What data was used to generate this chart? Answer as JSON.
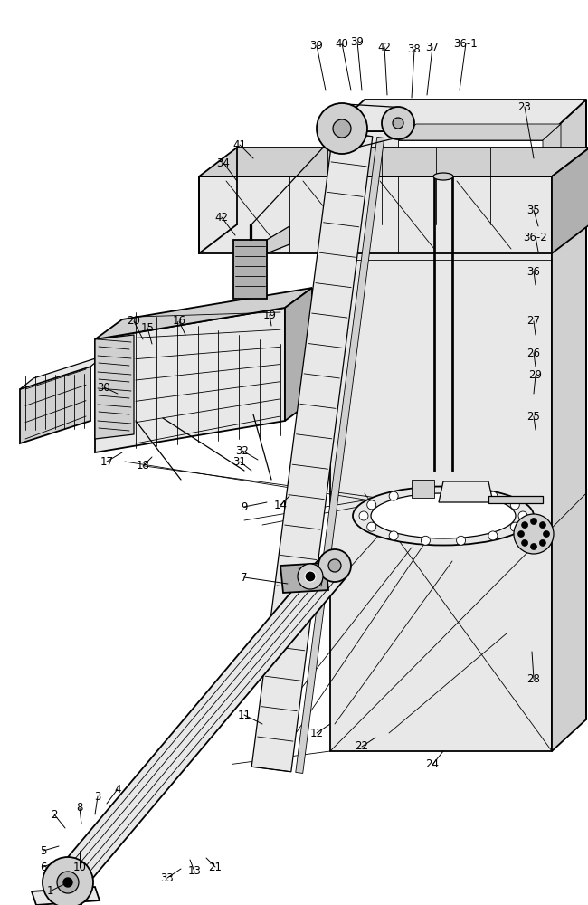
{
  "figsize": [
    6.5,
    10.0
  ],
  "dpi": 100,
  "bg_color": "#ffffff",
  "lc": "#000000",
  "lw_main": 1.3,
  "lw_med": 0.9,
  "lw_thin": 0.6,
  "gray_light": "#e8e8e8",
  "gray_mid": "#d0d0d0",
  "gray_dark": "#b0b0b0",
  "label_fontsize": 8.5
}
